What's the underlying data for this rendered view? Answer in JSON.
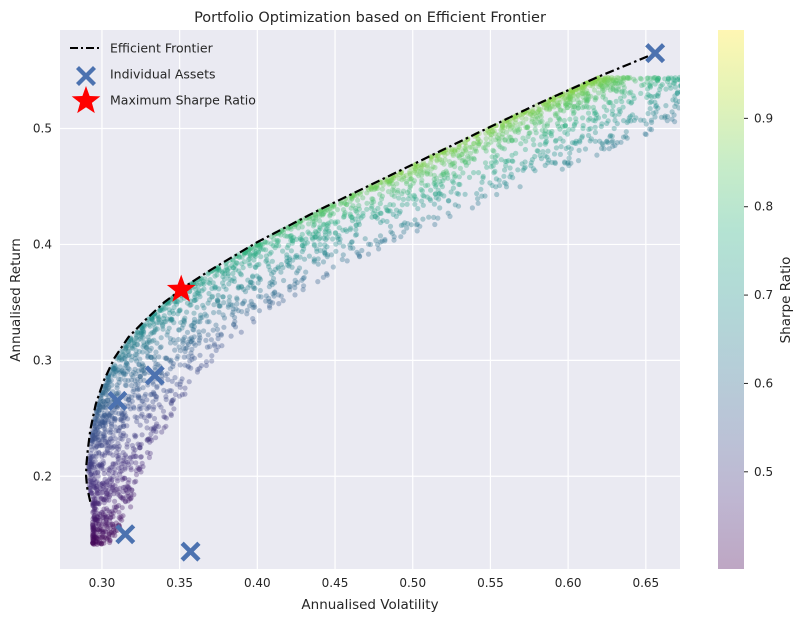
{
  "chart_data": {
    "type": "scatter",
    "title": "Portfolio Optimization based on Efficient Frontier",
    "xlabel": "Annualised Volatility",
    "ylabel": "Annualised Return",
    "xlim": [
      0.273,
      0.672
    ],
    "ylim": [
      0.12,
      0.585
    ],
    "xticks": [
      0.3,
      0.35,
      0.4,
      0.45,
      0.5,
      0.55,
      0.6,
      0.65
    ],
    "xtick_labels": [
      "0.30",
      "0.35",
      "0.40",
      "0.45",
      "0.50",
      "0.55",
      "0.60",
      "0.65"
    ],
    "yticks": [
      0.2,
      0.3,
      0.4,
      0.5
    ],
    "ytick_labels": [
      "0.2",
      "0.3",
      "0.4",
      "0.5"
    ],
    "grid": true,
    "legend_position": "top-left",
    "colorbar": {
      "label": "Sharpe Ratio",
      "colormap": "viridis",
      "range": [
        0.39,
        1.0
      ],
      "ticks": [
        0.5,
        0.6,
        0.7,
        0.8,
        0.9
      ],
      "tick_labels": [
        "0.5",
        "0.6",
        "0.7",
        "0.8",
        "0.9"
      ]
    },
    "series": [
      {
        "name": "Efficient Frontier",
        "kind": "line",
        "style": "dash-dot",
        "color": "#000000",
        "points": [
          [
            0.2925,
            0.178
          ],
          [
            0.2905,
            0.19
          ],
          [
            0.2898,
            0.2
          ],
          [
            0.29,
            0.21
          ],
          [
            0.2908,
            0.222
          ],
          [
            0.2925,
            0.24
          ],
          [
            0.296,
            0.262
          ],
          [
            0.301,
            0.282
          ],
          [
            0.308,
            0.302
          ],
          [
            0.317,
            0.32
          ],
          [
            0.328,
            0.335
          ],
          [
            0.34,
            0.35
          ],
          [
            0.355,
            0.365
          ],
          [
            0.37,
            0.378
          ],
          [
            0.385,
            0.39
          ],
          [
            0.4,
            0.402
          ],
          [
            0.42,
            0.416
          ],
          [
            0.44,
            0.43
          ],
          [
            0.46,
            0.443
          ],
          [
            0.48,
            0.456
          ],
          [
            0.5,
            0.469
          ],
          [
            0.52,
            0.482
          ],
          [
            0.54,
            0.495
          ],
          [
            0.56,
            0.508
          ],
          [
            0.58,
            0.521
          ],
          [
            0.6,
            0.533
          ],
          [
            0.62,
            0.545
          ],
          [
            0.64,
            0.556
          ],
          [
            0.656,
            0.565
          ]
        ]
      },
      {
        "name": "Individual Assets",
        "kind": "marker",
        "marker": "X",
        "color": "#4c72b0",
        "points": [
          [
            0.656,
            0.565
          ],
          [
            0.31,
            0.265
          ],
          [
            0.334,
            0.287
          ],
          [
            0.315,
            0.15
          ],
          [
            0.357,
            0.135
          ]
        ]
      },
      {
        "name": "Maximum Sharpe Ratio",
        "kind": "marker",
        "marker": "star",
        "color": "#ff0000",
        "points": [
          [
            0.351,
            0.361
          ]
        ]
      },
      {
        "name": "Simulated Portfolios",
        "kind": "scatter",
        "colormap": "viridis",
        "color_by": "Sharpe Ratio",
        "alpha": 0.35,
        "approx_count": 3000,
        "x_range": [
          0.291,
          0.601
        ],
        "y_range": [
          0.141,
          0.544
        ]
      }
    ]
  },
  "colors": {
    "axes_background": "#eaeaf2",
    "grid": "#ffffff",
    "frontier": "#000000",
    "assets": "#4c72b0",
    "max_sharpe": "#ff0000"
  }
}
